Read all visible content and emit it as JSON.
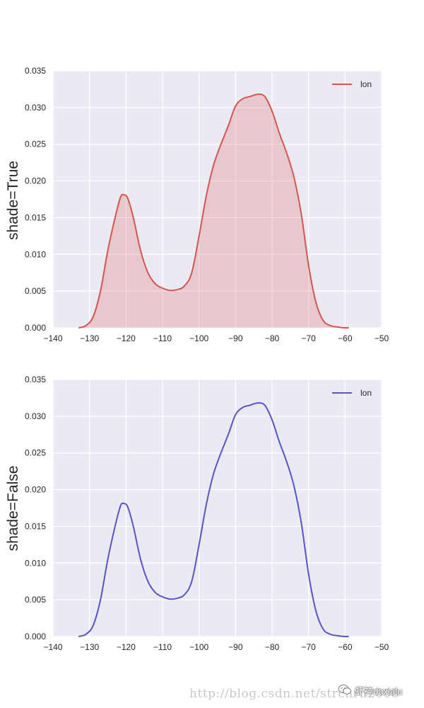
{
  "chart_data": [
    {
      "type": "line",
      "ylabel": "shade=True",
      "xlabel": "",
      "shade": true,
      "xlim": [
        -140,
        -50
      ],
      "ylim": [
        0,
        0.035
      ],
      "xticks": [
        "−140",
        "−130",
        "−120",
        "−110",
        "−100",
        "−90",
        "−80",
        "−70",
        "−60",
        "−50"
      ],
      "yticks": [
        "0.000",
        "0.005",
        "0.010",
        "0.015",
        "0.020",
        "0.025",
        "0.030",
        "0.035"
      ],
      "grid": true,
      "legend_position": "top-right",
      "series": [
        {
          "name": "lon",
          "color": "#d9534f",
          "x": [
            -133,
            -131,
            -129,
            -127,
            -125,
            -123,
            -121.5,
            -120.5,
            -119.5,
            -118,
            -116,
            -114,
            -112,
            -110,
            -108,
            -106,
            -104,
            -102,
            -100,
            -98,
            -96,
            -94,
            -92,
            -90,
            -88,
            -86,
            -84,
            -82,
            -80,
            -78,
            -76,
            -74,
            -72,
            -70,
            -68,
            -66,
            -64,
            -62,
            -60,
            -59
          ],
          "y": [
            0.0,
            0.0003,
            0.0015,
            0.005,
            0.0105,
            0.015,
            0.0178,
            0.0181,
            0.0176,
            0.015,
            0.0105,
            0.0075,
            0.006,
            0.0054,
            0.0051,
            0.0052,
            0.0057,
            0.0075,
            0.0125,
            0.018,
            0.0222,
            0.025,
            0.0275,
            0.0302,
            0.0312,
            0.0315,
            0.0318,
            0.0315,
            0.0295,
            0.0265,
            0.0238,
            0.0205,
            0.0155,
            0.0085,
            0.0035,
            0.001,
            0.0003,
            0.0001,
            0.0,
            0.0
          ]
        }
      ]
    },
    {
      "type": "line",
      "ylabel": "shade=False",
      "xlabel": "",
      "shade": false,
      "xlim": [
        -140,
        -50
      ],
      "ylim": [
        0,
        0.035
      ],
      "xticks": [
        "−140",
        "−130",
        "−120",
        "−110",
        "−100",
        "−90",
        "−80",
        "−70",
        "−60",
        "−50"
      ],
      "yticks": [
        "0.000",
        "0.005",
        "0.010",
        "0.015",
        "0.020",
        "0.025",
        "0.030",
        "0.035"
      ],
      "grid": true,
      "legend_position": "top-right",
      "series": [
        {
          "name": "lon",
          "color": "#5a50d0",
          "x": [
            -133,
            -131,
            -129,
            -127,
            -125,
            -123,
            -121.5,
            -120.5,
            -119.5,
            -118,
            -116,
            -114,
            -112,
            -110,
            -108,
            -106,
            -104,
            -102,
            -100,
            -98,
            -96,
            -94,
            -92,
            -90,
            -88,
            -86,
            -84,
            -82,
            -80,
            -78,
            -76,
            -74,
            -72,
            -70,
            -68,
            -66,
            -64,
            -62,
            -60,
            -59
          ],
          "y": [
            0.0,
            0.0003,
            0.0015,
            0.005,
            0.0105,
            0.015,
            0.0178,
            0.0181,
            0.0176,
            0.015,
            0.0105,
            0.0075,
            0.006,
            0.0054,
            0.0051,
            0.0052,
            0.0057,
            0.0075,
            0.0125,
            0.018,
            0.0222,
            0.025,
            0.0275,
            0.0302,
            0.0312,
            0.0315,
            0.0318,
            0.0315,
            0.0295,
            0.0265,
            0.0238,
            0.0205,
            0.0155,
            0.0085,
            0.0035,
            0.001,
            0.0003,
            0.0001,
            0.0,
            0.0
          ]
        }
      ]
    }
  ],
  "colors": {
    "axes_bg": "#eaeaf2",
    "grid": "#ffffff",
    "text": "#262626"
  },
  "watermark": {
    "url_text": "http://blog.csdn.net/strcnru2008",
    "brand_text": "虾神daxialu",
    "brand_icon": "wechat-icon"
  }
}
